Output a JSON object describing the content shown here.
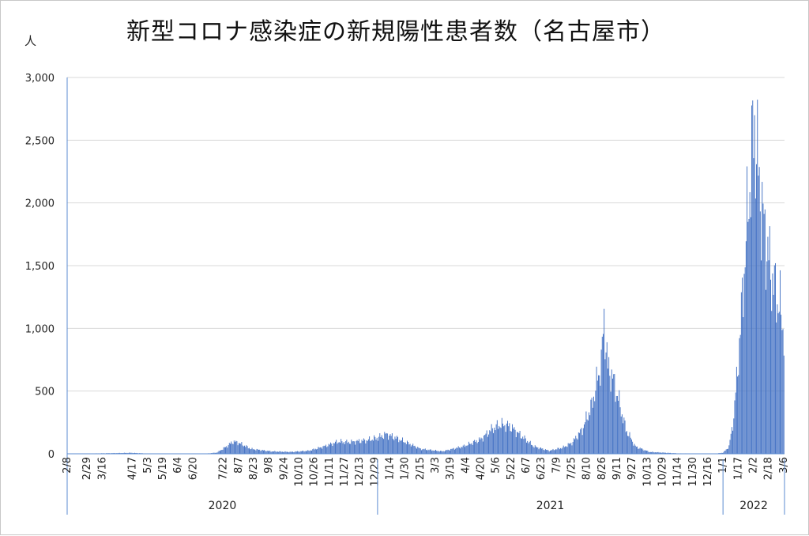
{
  "chart_data": {
    "type": "bar",
    "title": "新型コロナ感染症の新規陽性患者数（名古屋市）",
    "unit_label": "人",
    "ylim": [
      0,
      3000
    ],
    "y_ticks": [
      "3,000",
      "2,500",
      "2,000",
      "1,500",
      "1,000",
      "500",
      "0"
    ],
    "y_tick_values": [
      3000,
      2500,
      2000,
      1500,
      1000,
      500,
      0
    ],
    "grid": true,
    "bar_color": "#4472c4",
    "x_start_date": "2020-02-08",
    "x_end_date": "2022-03-06",
    "x_tick_labels": [
      "2/8",
      "2/29",
      "3/16",
      "4/17",
      "5/3",
      "5/19",
      "6/4",
      "6/20",
      "7/22",
      "8/7",
      "8/23",
      "9/8",
      "9/24",
      "10/10",
      "10/26",
      "11/11",
      "11/27",
      "12/13",
      "12/29",
      "1/14",
      "1/30",
      "2/15",
      "3/3",
      "3/19",
      "4/4",
      "4/20",
      "5/6",
      "5/22",
      "6/7",
      "6/23",
      "7/9",
      "7/25",
      "8/10",
      "8/26",
      "9/11",
      "9/27",
      "10/13",
      "10/29",
      "11/14",
      "11/30",
      "12/16",
      "1/1",
      "1/17",
      "2/2",
      "2/18",
      "3/6"
    ],
    "x_tick_dates": [
      "2020-02-08",
      "2020-02-29",
      "2020-03-16",
      "2020-04-17",
      "2020-05-03",
      "2020-05-19",
      "2020-06-04",
      "2020-06-20",
      "2020-07-22",
      "2020-08-07",
      "2020-08-23",
      "2020-09-08",
      "2020-09-24",
      "2020-10-10",
      "2020-10-26",
      "2020-11-11",
      "2020-11-27",
      "2020-12-13",
      "2020-12-29",
      "2021-01-14",
      "2021-01-30",
      "2021-02-15",
      "2021-03-03",
      "2021-03-19",
      "2021-04-04",
      "2021-04-20",
      "2021-05-06",
      "2021-05-22",
      "2021-06-07",
      "2021-06-23",
      "2021-07-09",
      "2021-07-25",
      "2021-08-10",
      "2021-08-26",
      "2021-09-11",
      "2021-09-27",
      "2021-10-13",
      "2021-10-29",
      "2021-11-14",
      "2021-11-30",
      "2021-12-16",
      "2022-01-01",
      "2022-01-17",
      "2022-02-02",
      "2022-02-18",
      "2022-03-06"
    ],
    "year_labels": [
      "2020",
      "2021",
      "2022"
    ],
    "year_starts": [
      "2020-02-08",
      "2021-01-01",
      "2022-01-01"
    ],
    "year_ends": [
      "2020-12-31",
      "2021-12-31",
      "2022-03-06"
    ],
    "series": [
      {
        "name": "",
        "values_by_date": [
          [
            "2020-02-08",
            0
          ],
          [
            "2020-03-01",
            2
          ],
          [
            "2020-04-01",
            6
          ],
          [
            "2020-04-15",
            8
          ],
          [
            "2020-05-10",
            0
          ],
          [
            "2020-07-01",
            0
          ],
          [
            "2020-07-15",
            10
          ],
          [
            "2020-07-25",
            60
          ],
          [
            "2020-08-01",
            100
          ],
          [
            "2020-08-07",
            90
          ],
          [
            "2020-08-20",
            40
          ],
          [
            "2020-09-10",
            20
          ],
          [
            "2020-10-01",
            15
          ],
          [
            "2020-10-20",
            25
          ],
          [
            "2020-11-05",
            60
          ],
          [
            "2020-11-20",
            100
          ],
          [
            "2020-12-01",
            95
          ],
          [
            "2020-12-20",
            110
          ],
          [
            "2020-12-31",
            130
          ],
          [
            "2021-01-10",
            160
          ],
          [
            "2021-01-20",
            130
          ],
          [
            "2021-02-01",
            90
          ],
          [
            "2021-02-15",
            40
          ],
          [
            "2021-03-10",
            20
          ],
          [
            "2021-04-01",
            60
          ],
          [
            "2021-04-20",
            120
          ],
          [
            "2021-05-01",
            200
          ],
          [
            "2021-05-10",
            240
          ],
          [
            "2021-05-20",
            230
          ],
          [
            "2021-06-01",
            150
          ],
          [
            "2021-06-15",
            60
          ],
          [
            "2021-07-01",
            25
          ],
          [
            "2021-07-15",
            50
          ],
          [
            "2021-07-25",
            90
          ],
          [
            "2021-08-05",
            200
          ],
          [
            "2021-08-15",
            400
          ],
          [
            "2021-08-25",
            750
          ],
          [
            "2021-08-28",
            1100
          ],
          [
            "2021-09-01",
            700
          ],
          [
            "2021-09-05",
            650
          ],
          [
            "2021-09-12",
            450
          ],
          [
            "2021-09-20",
            200
          ],
          [
            "2021-09-30",
            60
          ],
          [
            "2021-10-15",
            15
          ],
          [
            "2021-11-15",
            3
          ],
          [
            "2021-12-25",
            2
          ],
          [
            "2022-01-01",
            10
          ],
          [
            "2022-01-07",
            60
          ],
          [
            "2022-01-12",
            300
          ],
          [
            "2022-01-18",
            900
          ],
          [
            "2022-01-22",
            1400
          ],
          [
            "2022-01-27",
            2000
          ],
          [
            "2022-02-01",
            2550
          ],
          [
            "2022-02-03",
            2700
          ],
          [
            "2022-02-08",
            2200
          ],
          [
            "2022-02-14",
            1800
          ],
          [
            "2022-02-20",
            1500
          ],
          [
            "2022-02-26",
            1300
          ],
          [
            "2022-03-02",
            1200
          ],
          [
            "2022-03-06",
            1000
          ]
        ]
      }
    ]
  }
}
